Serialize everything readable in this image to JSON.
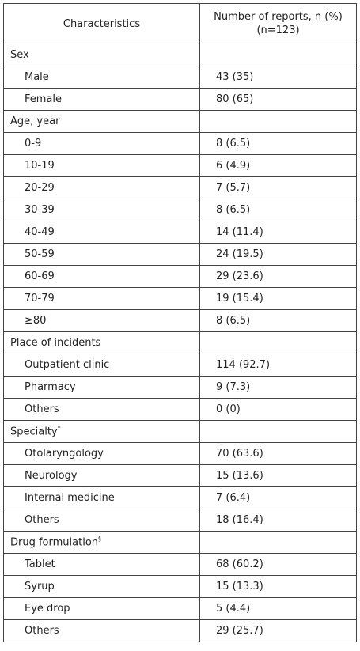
{
  "table": {
    "header": {
      "characteristics": "Characteristics",
      "number": "Number of reports, n (%)",
      "n": "(n=123)"
    },
    "sections": [
      {
        "name": "Sex",
        "rows": [
          [
            "Male",
            "43 (35)"
          ],
          [
            "Female",
            "80 (65)"
          ]
        ]
      },
      {
        "name": "Age, year",
        "rows": [
          [
            "0-9",
            "8 (6.5)"
          ],
          [
            "10-19",
            "6 (4.9)"
          ],
          [
            "20-29",
            "7 (5.7)"
          ],
          [
            "30-39",
            "8 (6.5)"
          ],
          [
            "40-49",
            "14 (11.4)"
          ],
          [
            "50-59",
            "24 (19.5)"
          ],
          [
            "60-69",
            "29 (23.6)"
          ],
          [
            "70-79",
            "19 (15.4)"
          ],
          [
            "≥80",
            "8 (6.5)"
          ]
        ]
      },
      {
        "name": "Place of incidents",
        "rows": [
          [
            "Outpatient clinic",
            "114 (92.7)"
          ],
          [
            "Pharmacy",
            "9 (7.3)"
          ],
          [
            "Others",
            "0 (0)"
          ]
        ]
      },
      {
        "name": "Specialty",
        "sup": "*",
        "rows": [
          [
            "Otolaryngology",
            "70 (63.6)"
          ],
          [
            "Neurology",
            "15 (13.6)"
          ],
          [
            "Internal medicine",
            "7 (6.4)"
          ],
          [
            "Others",
            "18 (16.4)"
          ]
        ]
      },
      {
        "name": "Drug formulation",
        "sup": "§",
        "rows": [
          [
            "Tablet",
            "68 (60.2)"
          ],
          [
            "Syrup",
            "15 (13.3)"
          ],
          [
            "Eye drop",
            "5 (4.4)"
          ],
          [
            "Others",
            "29 (25.7)"
          ]
        ]
      }
    ]
  }
}
